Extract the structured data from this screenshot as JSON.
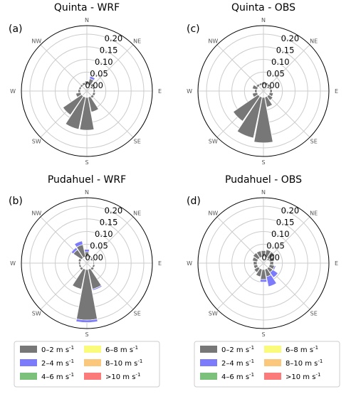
{
  "figure": {
    "directions": [
      "N",
      "NE",
      "E",
      "SE",
      "S",
      "SW",
      "W",
      "NW"
    ],
    "radial_ticks": [
      "0.00",
      "0.05",
      "0.10",
      "0.15",
      "0.20"
    ],
    "legend_labels": [
      "0–2 m s",
      "2–4 m s",
      "4–6 m s",
      "6–8 m s",
      "8–10 m s",
      ">10 m s"
    ],
    "legend_sup": "-1"
  },
  "colors": {
    "0-2": "#777777",
    "2-4": "#7b7bfb",
    "4-6": "#7bc07b",
    "6-8": "#fbfb7b",
    "8-10": "#fbc87b",
    ">10": "#fb7b7b"
  },
  "chart_data": [
    {
      "type": "windrose",
      "panel": "(a)",
      "title": "Quinta - WRF",
      "rmax": 0.2,
      "bins": [
        "0-2",
        "2-4",
        "4-6",
        "6-8",
        "8-10",
        ">10"
      ],
      "directions_deg": [
        0,
        22.5,
        45,
        67.5,
        90,
        112.5,
        135,
        157.5,
        180,
        202.5,
        225,
        247.5,
        270,
        292.5,
        315,
        337.5
      ],
      "values": [
        [
          0.015,
          0.002
        ],
        [
          0.025,
          0.01
        ],
        [
          0.012,
          0.002
        ],
        [
          0.008,
          0
        ],
        [
          0.008,
          0
        ],
        [
          0.01,
          0
        ],
        [
          0.01,
          0
        ],
        [
          0.06,
          0
        ],
        [
          0.13,
          0
        ],
        [
          0.13,
          0
        ],
        [
          0.09,
          0
        ],
        [
          0.02,
          0
        ],
        [
          0.01,
          0
        ],
        [
          0.008,
          0
        ],
        [
          0.008,
          0
        ],
        [
          0.01,
          0
        ]
      ]
    },
    {
      "type": "windrose",
      "panel": "(c)",
      "title": "Quinta - OBS",
      "rmax": 0.2,
      "bins": [
        "0-2",
        "2-4",
        "4-6",
        "6-8",
        "8-10",
        ">10"
      ],
      "directions_deg": [
        0,
        22.5,
        45,
        67.5,
        90,
        112.5,
        135,
        157.5,
        180,
        202.5,
        225,
        247.5,
        270,
        292.5,
        315,
        337.5
      ],
      "values": [
        [
          0.01,
          0
        ],
        [
          0.01,
          0
        ],
        [
          0.01,
          0
        ],
        [
          0.008,
          0
        ],
        [
          0.01,
          0
        ],
        [
          0.015,
          0
        ],
        [
          0.02,
          0
        ],
        [
          0.04,
          0
        ],
        [
          0.18,
          0
        ],
        [
          0.165,
          0
        ],
        [
          0.12,
          0
        ],
        [
          0.02,
          0
        ],
        [
          0.01,
          0
        ],
        [
          0.02,
          0
        ],
        [
          0.01,
          0
        ],
        [
          0.008,
          0
        ]
      ]
    },
    {
      "type": "windrose",
      "panel": "(b)",
      "title": "Pudahuel - WRF",
      "rmax": 0.2,
      "bins": [
        "0-2",
        "2-4",
        "4-6",
        "6-8",
        "8-10",
        ">10"
      ],
      "directions_deg": [
        0,
        22.5,
        45,
        67.5,
        90,
        112.5,
        135,
        157.5,
        180,
        202.5,
        225,
        247.5,
        270,
        292.5,
        315,
        337.5
      ],
      "values": [
        [
          0.02,
          0.01
        ],
        [
          0.008,
          0
        ],
        [
          0.005,
          0
        ],
        [
          0.005,
          0
        ],
        [
          0.005,
          0
        ],
        [
          0.008,
          0
        ],
        [
          0.01,
          0
        ],
        [
          0.08,
          0.005
        ],
        [
          0.2,
          0.01
        ],
        [
          0.08,
          0
        ],
        [
          0.01,
          0
        ],
        [
          0.008,
          0
        ],
        [
          0.008,
          0
        ],
        [
          0.01,
          0
        ],
        [
          0.04,
          0.01
        ],
        [
          0.05,
          0.015
        ]
      ]
    },
    {
      "type": "windrose",
      "panel": "(d)",
      "title": "Pudahuel - OBS",
      "rmax": 0.2,
      "bins": [
        "0-2",
        "2-4",
        "4-6",
        "6-8",
        "8-10",
        ">10"
      ],
      "directions_deg": [
        0,
        22.5,
        45,
        67.5,
        90,
        112.5,
        135,
        157.5,
        180,
        202.5,
        225,
        247.5,
        270,
        292.5,
        315,
        337.5
      ],
      "values": [
        [
          0.025,
          0
        ],
        [
          0.03,
          0
        ],
        [
          0.03,
          0
        ],
        [
          0.02,
          0
        ],
        [
          0.015,
          0
        ],
        [
          0.02,
          0.005
        ],
        [
          0.02,
          0.025
        ],
        [
          0.03,
          0.04
        ],
        [
          0.04,
          0.01
        ],
        [
          0.03,
          0
        ],
        [
          0.02,
          0
        ],
        [
          0.015,
          0
        ],
        [
          0.015,
          0
        ],
        [
          0.02,
          0
        ],
        [
          0.025,
          0
        ],
        [
          0.025,
          0
        ]
      ]
    }
  ]
}
